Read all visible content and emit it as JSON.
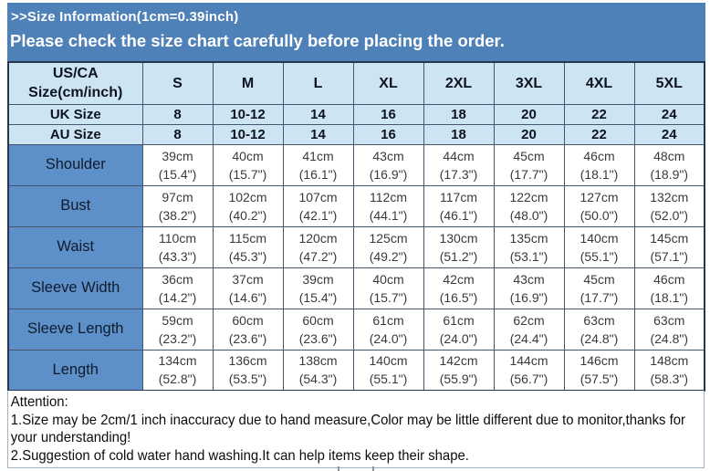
{
  "banner": {
    "line1": ">>Size Information(1cm=0.39inch)",
    "line2": "Please check the size chart carefully before placing the order."
  },
  "table": {
    "corner_line1": "US/CA",
    "corner_line2": "Size(cm/inch)",
    "sizes": [
      "S",
      "M",
      "L",
      "XL",
      "2XL",
      "3XL",
      "4XL",
      "5XL"
    ],
    "size_rows": [
      {
        "label": "UK Size",
        "values": [
          "8",
          "10-12",
          "14",
          "16",
          "18",
          "20",
          "22",
          "24"
        ]
      },
      {
        "label": "AU Size",
        "values": [
          "8",
          "10-12",
          "14",
          "16",
          "18",
          "20",
          "22",
          "24"
        ]
      }
    ],
    "measurements": [
      {
        "label": "Shoulder",
        "values": [
          {
            "cm": "39cm",
            "inch": "(15.4\")"
          },
          {
            "cm": "40cm",
            "inch": "(15.7\")"
          },
          {
            "cm": "41cm",
            "inch": "(16.1\")"
          },
          {
            "cm": "43cm",
            "inch": "(16.9\")"
          },
          {
            "cm": "44cm",
            "inch": "(17.3\")"
          },
          {
            "cm": "45cm",
            "inch": "(17.7\")"
          },
          {
            "cm": "46cm",
            "inch": "(18.1\")"
          },
          {
            "cm": "48cm",
            "inch": "(18.9\")"
          }
        ]
      },
      {
        "label": "Bust",
        "values": [
          {
            "cm": "97cm",
            "inch": "(38.2\")"
          },
          {
            "cm": "102cm",
            "inch": "(40.2\")"
          },
          {
            "cm": "107cm",
            "inch": "(42.1\")"
          },
          {
            "cm": "112cm",
            "inch": "(44.1\")"
          },
          {
            "cm": "117cm",
            "inch": "(46.1\")"
          },
          {
            "cm": "122cm",
            "inch": "(48.0\")"
          },
          {
            "cm": "127cm",
            "inch": "(50.0\")"
          },
          {
            "cm": "132cm",
            "inch": "(52.0\")"
          }
        ]
      },
      {
        "label": "Waist",
        "values": [
          {
            "cm": "110cm",
            "inch": "(43.3\")"
          },
          {
            "cm": "115cm",
            "inch": "(45.3\")"
          },
          {
            "cm": "120cm",
            "inch": "(47.2\")"
          },
          {
            "cm": "125cm",
            "inch": "(49.2\")"
          },
          {
            "cm": "130cm",
            "inch": "(51.2\")"
          },
          {
            "cm": "135cm",
            "inch": "(53.1\")"
          },
          {
            "cm": "140cm",
            "inch": "(55.1\")"
          },
          {
            "cm": "145cm",
            "inch": "(57.1\")"
          }
        ]
      },
      {
        "label": "Sleeve Width",
        "values": [
          {
            "cm": "36cm",
            "inch": "(14.2\")"
          },
          {
            "cm": "37cm",
            "inch": "(14.6\")"
          },
          {
            "cm": "39cm",
            "inch": "(15.4\")"
          },
          {
            "cm": "40cm",
            "inch": "(15.7\")"
          },
          {
            "cm": "42cm",
            "inch": "(16.5\")"
          },
          {
            "cm": "43cm",
            "inch": "(16.9\")"
          },
          {
            "cm": "45cm",
            "inch": "(17.7\")"
          },
          {
            "cm": "46cm",
            "inch": "(18.1\")"
          }
        ]
      },
      {
        "label": "Sleeve Length",
        "values": [
          {
            "cm": "59cm",
            "inch": "(23.2\")"
          },
          {
            "cm": "60cm",
            "inch": "(23.6\")"
          },
          {
            "cm": "60cm",
            "inch": "(23.6\")"
          },
          {
            "cm": "61cm",
            "inch": "(24.0\")"
          },
          {
            "cm": "61cm",
            "inch": "(24.0\")"
          },
          {
            "cm": "62cm",
            "inch": "(24.4\")"
          },
          {
            "cm": "63cm",
            "inch": "(24.8\")"
          },
          {
            "cm": "63cm",
            "inch": "(24.8\")"
          }
        ]
      },
      {
        "label": "Length",
        "values": [
          {
            "cm": "134cm",
            "inch": "(52.8\")"
          },
          {
            "cm": "136cm",
            "inch": "(53.5\")"
          },
          {
            "cm": "138cm",
            "inch": "(54.3\")"
          },
          {
            "cm": "140cm",
            "inch": "(55.1\")"
          },
          {
            "cm": "142cm",
            "inch": "(55.9\")"
          },
          {
            "cm": "144cm",
            "inch": "(56.7\")"
          },
          {
            "cm": "146cm",
            "inch": "(57.5\")"
          },
          {
            "cm": "148cm",
            "inch": "(58.3\")"
          }
        ]
      }
    ]
  },
  "attention": {
    "title": "Attention:",
    "notes": [
      "1.Size may be 2cm/1 inch inaccuracy due to hand measure,Color may be little different due to monitor,thanks for your understanding!",
      "2.Suggestion of cold water hand washing.It can help items keep their shape."
    ]
  },
  "colors": {
    "banner_bg": "#4f81b9",
    "header_cell_bg": "#cde4f3",
    "row_label_bg": "#5d90c8",
    "table_border": "#45566e",
    "banner_text": "#ffffff"
  }
}
